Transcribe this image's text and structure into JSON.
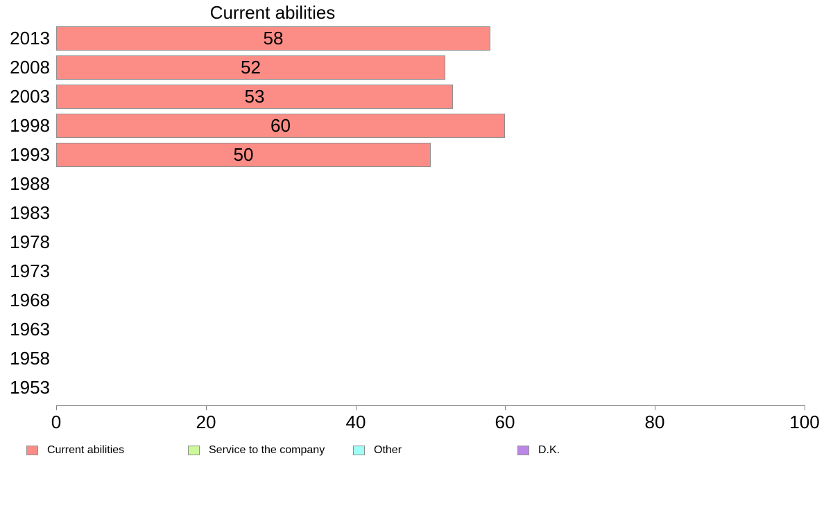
{
  "chart_data": {
    "type": "bar",
    "orientation": "horizontal",
    "title": "Current abilities",
    "categories": [
      "2013",
      "2008",
      "2003",
      "1998",
      "1993",
      "1988",
      "1983",
      "1978",
      "1973",
      "1968",
      "1963",
      "1958",
      "1953"
    ],
    "series": [
      {
        "name": "Current abilities",
        "color": "#FB8D86",
        "values": [
          58,
          52,
          53,
          60,
          50,
          null,
          null,
          null,
          null,
          null,
          null,
          null,
          null
        ]
      }
    ],
    "bar_labels_shown": true,
    "xlabel": "",
    "ylabel": "",
    "xlim": [
      0,
      100
    ],
    "x_ticks": [
      0,
      20,
      40,
      60,
      80,
      100
    ],
    "grid": false,
    "legend_position": "bottom",
    "legend": [
      {
        "label": "Current abilities",
        "color": "#FB8D86"
      },
      {
        "label": "Service to the company",
        "color": "#CCF89A"
      },
      {
        "label": "Other",
        "color": "#9FFEF6"
      },
      {
        "label": "D.K.",
        "color": "#BA87E6"
      }
    ],
    "colors": {
      "axis": "#808080",
      "bar_border": "#8f8f8f",
      "text": "#000000",
      "background": "#ffffff"
    }
  }
}
